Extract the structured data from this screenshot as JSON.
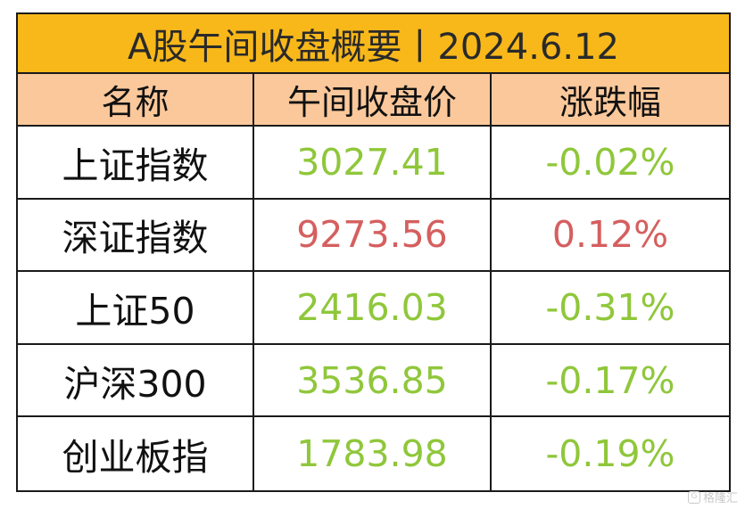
{
  "title": "A股午间收盘概要丨2024.6.12",
  "headers": [
    "名称",
    "午间收盘价",
    "涨跌幅"
  ],
  "rows": [
    {
      "name": "上证指数",
      "price": "3027.41",
      "change": "-0.02%",
      "direction": "down"
    },
    {
      "name": "深证指数",
      "price": "9273.56",
      "change": "0.12%",
      "direction": "up"
    },
    {
      "name": "上证50",
      "price": "2416.03",
      "change": "-0.31%",
      "direction": "down"
    },
    {
      "name": "沪深300",
      "price": "3536.85",
      "change": "-0.17%",
      "direction": "down"
    },
    {
      "name": "创业板指",
      "price": "1783.98",
      "change": "-0.19%",
      "direction": "down"
    }
  ],
  "colors": {
    "title_bg": "#f8b81a",
    "header_bg": "#fbc89b",
    "down": "#8fc73a",
    "up": "#d55f5f",
    "border": "#1a1a1a"
  },
  "watermark": {
    "icon": "G",
    "text": "格隆汇"
  }
}
